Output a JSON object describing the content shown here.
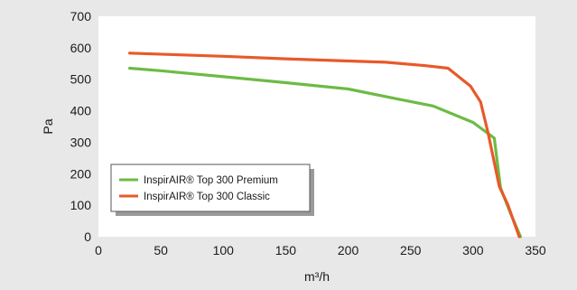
{
  "chart_data": {
    "type": "line",
    "xlabel": "m³/h",
    "ylabel": "Pa",
    "xlim": [
      0,
      350
    ],
    "ylim": [
      0,
      700
    ],
    "xticks": [
      0,
      50,
      100,
      150,
      200,
      250,
      300,
      350
    ],
    "yticks": [
      0,
      100,
      200,
      300,
      400,
      500,
      600,
      700
    ],
    "grid": false,
    "legend_position": "bottom-left",
    "series": [
      {
        "name": "InspirAIR® Top 300 Premium",
        "color": "#6cbb45",
        "points": [
          [
            25,
            535
          ],
          [
            50,
            527
          ],
          [
            100,
            508
          ],
          [
            150,
            489
          ],
          [
            200,
            469
          ],
          [
            240,
            437
          ],
          [
            268,
            415
          ],
          [
            300,
            363
          ],
          [
            317,
            313
          ],
          [
            322,
            155
          ],
          [
            330,
            75
          ],
          [
            338,
            0
          ]
        ]
      },
      {
        "name": "InspirAIR® Top 300 Classic",
        "color": "#e8592a",
        "points": [
          [
            25,
            583
          ],
          [
            100,
            573
          ],
          [
            150,
            565
          ],
          [
            200,
            558
          ],
          [
            230,
            554
          ],
          [
            262,
            543
          ],
          [
            280,
            535
          ],
          [
            298,
            478
          ],
          [
            306,
            428
          ],
          [
            312,
            330
          ],
          [
            321,
            160
          ],
          [
            328,
            100
          ],
          [
            337,
            0
          ]
        ]
      }
    ]
  }
}
